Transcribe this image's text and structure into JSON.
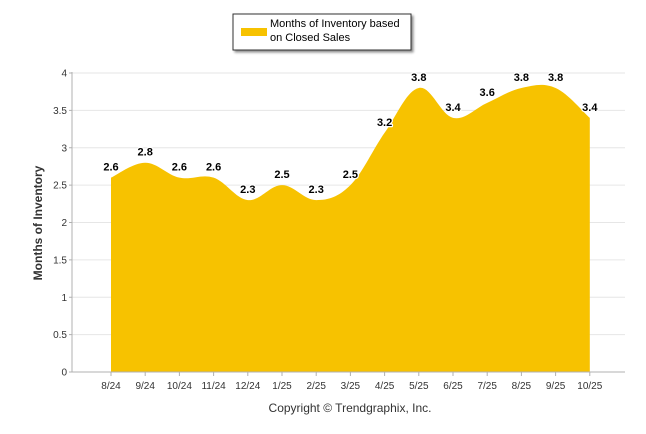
{
  "chart_data": {
    "type": "area",
    "categories": [
      "8/24",
      "9/24",
      "10/24",
      "11/24",
      "12/24",
      "1/25",
      "2/25",
      "3/25",
      "4/25",
      "5/25",
      "6/25",
      "7/25",
      "8/25",
      "9/25",
      "10/25"
    ],
    "series": [
      {
        "name": "Months of Inventory based on Closed Sales",
        "values": [
          2.6,
          2.8,
          2.6,
          2.6,
          2.3,
          2.5,
          2.3,
          2.5,
          3.2,
          3.8,
          3.4,
          3.6,
          3.8,
          3.8,
          3.4
        ],
        "color": "#F7C200"
      }
    ],
    "data_labels": [
      "2.6",
      "2.8",
      "2.6",
      "2.6",
      "2.3",
      "2.5",
      "2.3",
      "2.5",
      "3.2",
      "3.8",
      "3.4",
      "3.6",
      "3.8",
      "3.8",
      "3.4"
    ],
    "ylabel": "Months of Inventory",
    "ylim": [
      0,
      4
    ],
    "yticks": [
      "0",
      "0.5",
      "1",
      "1.5",
      "2",
      "2.5",
      "3",
      "3.5",
      "4"
    ],
    "grid": true,
    "legend": {
      "position": "top-center",
      "label": "Months of Inventory based on Closed Sales",
      "lines": [
        "Months of Inventory based",
        "on Closed Sales"
      ]
    },
    "footer": "Copyright © Trendgraphix, Inc."
  }
}
